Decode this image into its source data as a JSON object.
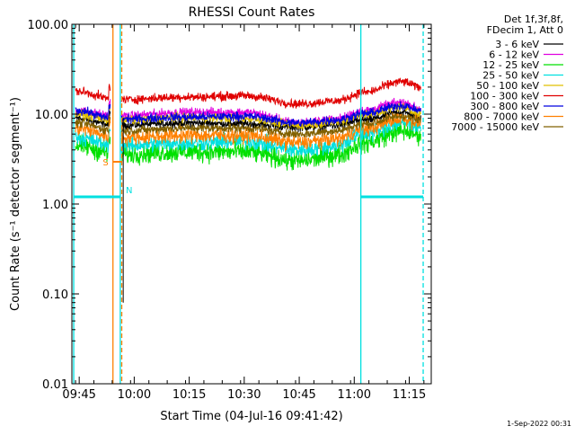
{
  "chart_data": {
    "type": "line",
    "title": "RHESSI Count Rates",
    "xlabel": "Start Time (04-Jul-16 09:41:42)",
    "ylabel": "Count Rate (s⁻¹ detector segment⁻¹)",
    "y_scale": "log",
    "ylim": [
      0.01,
      100
    ],
    "xlim_minutes": [
      -2,
      96
    ],
    "x_ticks": [
      {
        "label": "09:45",
        "value": 0
      },
      {
        "label": "10:00",
        "value": 15
      },
      {
        "label": "10:15",
        "value": 30
      },
      {
        "label": "10:30",
        "value": 45
      },
      {
        "label": "10:45",
        "value": 60
      },
      {
        "label": "11:00",
        "value": 75
      },
      {
        "label": "11:15",
        "value": 90
      }
    ],
    "y_ticks": [
      {
        "label": "0.01",
        "value": 0.01
      },
      {
        "label": "0.10",
        "value": 0.1
      },
      {
        "label": "1.00",
        "value": 1
      },
      {
        "label": "10.00",
        "value": 10
      },
      {
        "label": "100.00",
        "value": 100
      }
    ],
    "legend_header": [
      "Det 1f,3f,8f,",
      "FDecim 1, Att 0"
    ],
    "legend_position": "top-right outside",
    "series": [
      {
        "name": "3 - 6 keV",
        "color": "#000000",
        "levels": [
          9.0,
          7.5,
          8.0,
          7.8,
          7.2,
          7.5,
          8.6,
          10.5,
          9.0
        ]
      },
      {
        "name": "6 - 12 keV",
        "color": "#e000e0",
        "levels": [
          11.0,
          9.5,
          10.5,
          10.5,
          8.0,
          8.8,
          11.0,
          13.5,
          11.5
        ]
      },
      {
        "name": "12 - 25 keV",
        "color": "#00e000",
        "levels": [
          4.5,
          3.6,
          3.8,
          3.8,
          3.0,
          3.5,
          4.8,
          6.5,
          6.0
        ]
      },
      {
        "name": "25 - 50 keV",
        "color": "#00e0e0",
        "levels": [
          5.5,
          4.5,
          4.8,
          5.0,
          4.0,
          4.5,
          6.0,
          8.0,
          7.5
        ]
      },
      {
        "name": "50 - 100 keV",
        "color": "#e0c000",
        "levels": [
          10.0,
          8.5,
          9.2,
          9.0,
          7.5,
          8.2,
          9.8,
          12.0,
          10.0
        ]
      },
      {
        "name": "100 - 300 keV",
        "color": "#e00000",
        "levels": [
          18.0,
          14.5,
          15.5,
          16.0,
          13.0,
          14.0,
          17.5,
          23.0,
          20.0
        ]
      },
      {
        "name": "300 - 800 keV",
        "color": "#0000e0",
        "levels": [
          11.0,
          8.8,
          9.3,
          9.5,
          8.0,
          8.6,
          10.2,
          12.5,
          11.0
        ]
      },
      {
        "name": "800 - 7000 keV",
        "color": "#ff8000",
        "levels": [
          7.0,
          5.5,
          5.8,
          5.8,
          4.8,
          5.3,
          6.8,
          9.0,
          8.0
        ]
      },
      {
        "name": "7000 - 15000 keV",
        "color": "#806000",
        "levels": [
          8.0,
          6.5,
          7.0,
          7.0,
          6.0,
          6.5,
          7.8,
          9.5,
          8.5
        ]
      }
    ],
    "level_times_minutes": [
      -1,
      10,
      30,
      45,
      60,
      70,
      78,
      88,
      93
    ],
    "data_gap_minutes": [
      8.5,
      11.5
    ],
    "spike_minute": 12,
    "annotations": [
      {
        "label": "S",
        "color": "#ff8000",
        "x1": 9.2,
        "x2": 11.5,
        "y": 0.62
      },
      {
        "label": "N",
        "color": "#00e0e0",
        "x": 12.2,
        "y": 0.54
      }
    ],
    "orbit_bars": [
      {
        "color": "#00e0e0",
        "x1": -1.5,
        "x2": 11.2,
        "y": 0.52
      },
      {
        "color": "#00e0e0",
        "x1": 76.8,
        "x2": 93.8,
        "y": 0.52
      }
    ],
    "vlines": [
      {
        "x": -1.5,
        "color": "#00e0e0",
        "dash": false
      },
      {
        "x": 9.2,
        "color": "#ff8000",
        "dash": false
      },
      {
        "x": 11.2,
        "color": "#00e0e0",
        "dash": false
      },
      {
        "x": 11.6,
        "color": "#ff8000",
        "dash": true
      },
      {
        "x": 76.8,
        "color": "#00e0e0",
        "dash": false
      },
      {
        "x": 93.8,
        "color": "#00e0e0",
        "dash": true
      }
    ],
    "timestamp": "1-Sep-2022 00:31"
  }
}
